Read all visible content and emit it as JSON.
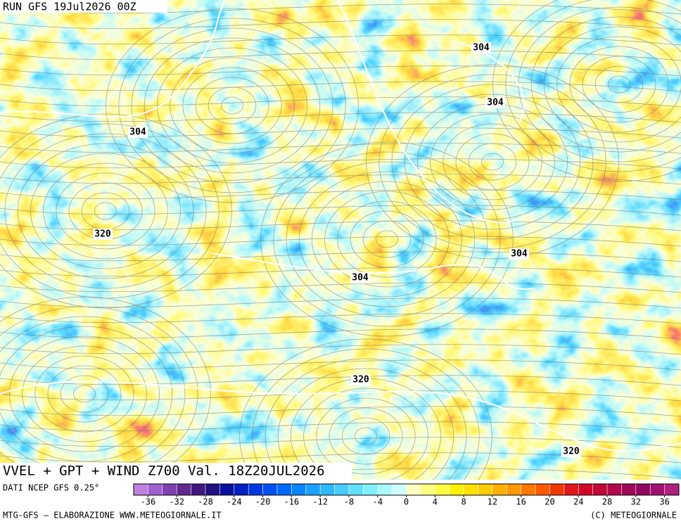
{
  "header": {
    "run": "RUN GFS 19Jul2026 00Z"
  },
  "map": {
    "title": "VVEL + GPT + WIND Z700 Val. 18Z20JUL2026",
    "contour_labels": [
      304,
      304,
      304,
      304,
      304,
      320,
      320,
      320
    ]
  },
  "colorbar": {
    "source": "DATI NCEP GFS 0.25°",
    "range": [
      -38,
      38
    ],
    "ticks": [
      -36,
      -32,
      -28,
      -24,
      -20,
      -16,
      -12,
      -8,
      -4,
      0,
      4,
      8,
      12,
      16,
      20,
      24,
      28,
      32,
      36
    ],
    "colors": [
      "#c080e0",
      "#a060d0",
      "#8040b0",
      "#602890",
      "#401880",
      "#201080",
      "#0810a0",
      "#0020c0",
      "#0038e0",
      "#0050f0",
      "#0068ff",
      "#0a84ff",
      "#1aa0ff",
      "#30b8ff",
      "#48ccff",
      "#60e0ff",
      "#80f0ff",
      "#a8f8ff",
      "#d0ffff",
      "#ffffc0",
      "#ffff80",
      "#ffff40",
      "#fff000",
      "#ffe000",
      "#ffcc00",
      "#ffb000",
      "#ff9800",
      "#ff7800",
      "#ff5800",
      "#f03800",
      "#e01818",
      "#d00828",
      "#c00838",
      "#b00848",
      "#a00858",
      "#900860",
      "#a01070",
      "#b02080"
    ]
  },
  "footer": {
    "left": "MTG-GFS – ELABORAZIONE WWW.METEOGIORNALE.IT",
    "right": "(C) METEOGIORNALE"
  }
}
